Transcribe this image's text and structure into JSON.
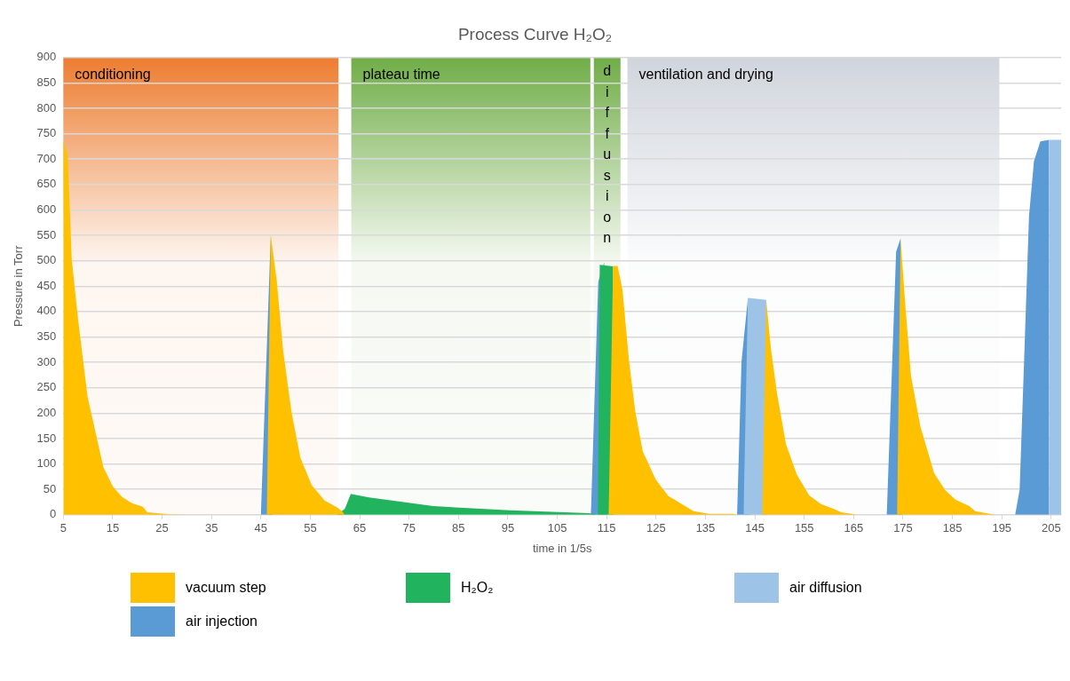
{
  "chart_data": {
    "type": "area",
    "title": "Process Curve H₂O₂",
    "xlabel": "time in 1/5s",
    "ylabel": "Pressure in Torr",
    "xlim": [
      5,
      207
    ],
    "xticks": [
      5,
      15,
      25,
      35,
      45,
      55,
      65,
      75,
      85,
      95,
      105,
      115,
      125,
      135,
      145,
      155,
      165,
      175,
      185,
      195,
      205
    ],
    "ylim": [
      0,
      900
    ],
    "yticks": [
      0,
      50,
      100,
      150,
      200,
      250,
      300,
      350,
      400,
      450,
      500,
      550,
      600,
      650,
      700,
      750,
      800,
      850,
      900
    ],
    "grid": "y",
    "legend": "bottom",
    "bands": [
      {
        "axis": "x",
        "from": 5,
        "to": 60.7,
        "label": "conditioning",
        "color": "#ed7d31"
      },
      {
        "axis": "x",
        "from": 63.3,
        "to": 111.7,
        "label": "plateau time",
        "color": "#70ad47"
      },
      {
        "axis": "x",
        "from": 112.4,
        "to": 117.8,
        "label": "diffusion",
        "color": "#70ad47"
      },
      {
        "axis": "x",
        "from": 119.2,
        "to": 194.5,
        "label": "ventilation and drying",
        "color": "#d0d5dd"
      }
    ],
    "series": [
      {
        "name": "vacuum step",
        "color": "#ffc000",
        "x": [
          5,
          5.9,
          6.7,
          8,
          9.9,
          13.1,
          15,
          16.9,
          18.9,
          21.1,
          22,
          26.5,
          30,
          46.2,
          47,
          48.2,
          49.5,
          51.2,
          53,
          55.3,
          57.9,
          60.5,
          61.4,
          62,
          115.4,
          116.3,
          117.2,
          118.2,
          119.5,
          120.8,
          122.3,
          124.9,
          127.5,
          130.6,
          132.6,
          135.8,
          140.9,
          141.2,
          146.5,
          147.3,
          148.2,
          149.5,
          151.3,
          153.5,
          156,
          158.4,
          160.9,
          162.5,
          165.9,
          173.8,
          174.5,
          175.4,
          176.6,
          178.5,
          181.3,
          183.5,
          185.6,
          188.4,
          189.6,
          193.7
        ],
        "values": [
          738,
          708,
          504,
          384,
          233,
          94,
          56,
          35,
          23,
          16,
          5,
          1,
          0,
          0,
          551,
          461,
          323,
          202,
          112,
          58,
          28,
          14,
          7,
          0,
          0,
          490,
          490,
          443,
          305,
          203,
          125,
          70,
          37,
          19,
          7,
          2,
          2,
          0,
          0,
          423,
          331,
          238,
          139,
          79,
          38,
          21,
          12,
          5,
          0,
          0,
          544,
          419,
          274,
          174,
          82,
          49,
          30,
          17,
          7,
          0
        ]
      },
      {
        "name": "H₂O₂",
        "color": "#22b35e",
        "x": [
          60.4,
          62,
          63.2,
          63.8,
          66.9,
          79.9,
          95.4,
          111.4,
          113.2,
          113.6,
          116.3,
          116.5
        ],
        "values": [
          0,
          12,
          41,
          40,
          34,
          17,
          9,
          3,
          0,
          492,
          489,
          0
        ]
      },
      {
        "name": "air diffusion",
        "color": "#9dc3e6",
        "x": [
          142.7,
          143.6,
          147.3,
          147.4,
          204.5,
          204.6,
          207,
          207
        ],
        "values": [
          0,
          427,
          423,
          0,
          0,
          738,
          738,
          0
        ]
      },
      {
        "name": "air injection",
        "color": "#5b9bd5",
        "x": [
          45,
          47,
          47.3,
          111.8,
          113.3,
          114.5,
          115,
          141.4,
          142.3,
          143.6,
          144,
          171.7,
          173.6,
          174.5,
          174.8,
          197.7,
          198.6,
          199.5,
          200.5,
          201.5,
          202.8,
          204.6,
          204.6
        ],
        "values": [
          0,
          551,
          0,
          0,
          459,
          497,
          0,
          0,
          302,
          427,
          0,
          0,
          518,
          544,
          0,
          0,
          49,
          302,
          588,
          696,
          735,
          738,
          0
        ]
      }
    ]
  }
}
